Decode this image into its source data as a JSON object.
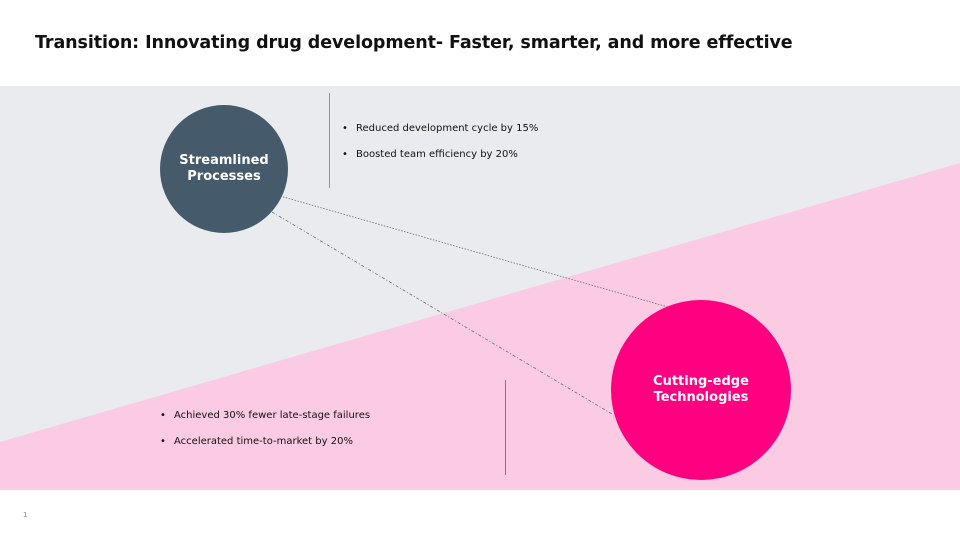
{
  "slide": {
    "title": "Transition: Innovating drug development- Faster, smarter, and more effective",
    "page_number": "1"
  },
  "colors": {
    "gray_band": "#e9ebee",
    "pink_band": "#fbcbe3",
    "blue_circle": "#455a6b",
    "pink_circle": "#ff0080"
  },
  "circles": {
    "streamlined": {
      "label": "Streamlined\nProcesses"
    },
    "cutting_edge": {
      "label": "Cutting-edge\nTechnologies"
    }
  },
  "bullets_top": [
    {
      "text": "Reduced development cycle by 15%"
    },
    {
      "text": "Boosted team efficiency by 20%"
    }
  ],
  "bullets_bottom": [
    {
      "text": "Achieved 30% fewer late-stage failures"
    },
    {
      "text": "Accelerated time-to-market by 20%"
    }
  ]
}
